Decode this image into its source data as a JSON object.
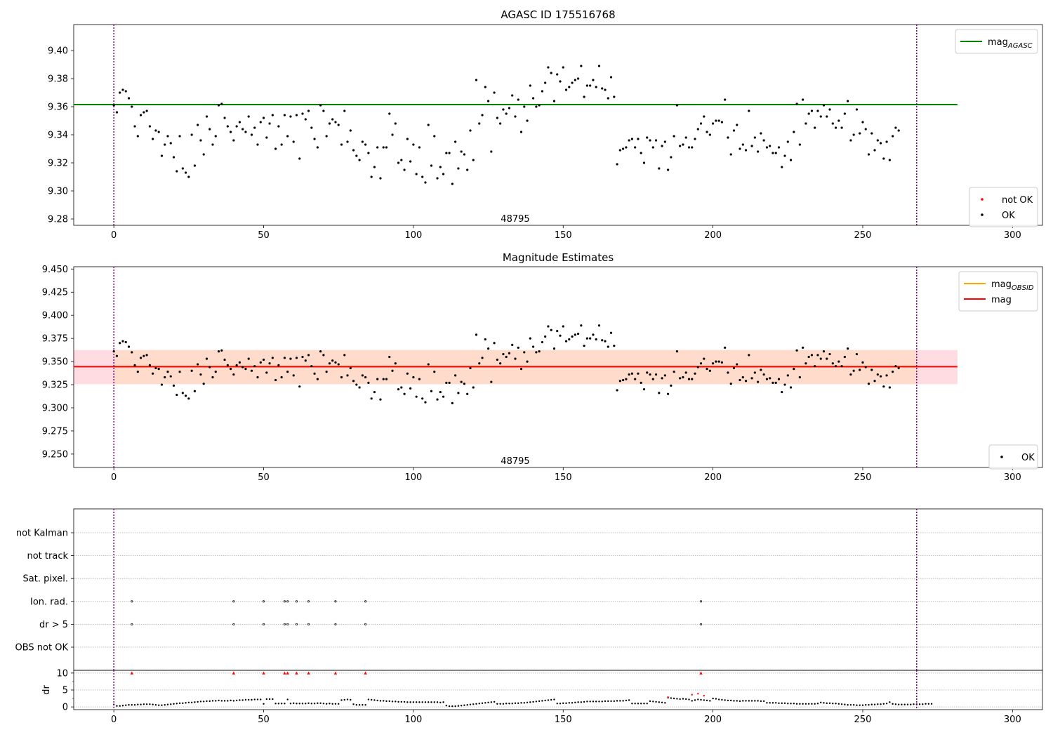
{
  "colors": {
    "agasc_line": "#008000",
    "obsid_line": "#ffa500",
    "mean_line": "#ff0000",
    "band_outer": "#ffc0cb",
    "band_inner": "#ffdab9",
    "points_ok": "#000000",
    "points_not_ok": "#ff0000",
    "vline": "#800080",
    "grid": "#b0b0b0"
  },
  "chart_data": [
    {
      "type": "scatter",
      "title": "AGASC ID 175516768",
      "xlim": [
        -13.4,
        310
      ],
      "ylim": [
        9.2755,
        9.4185
      ],
      "x_ticks": [
        0,
        50,
        100,
        150,
        200,
        250,
        300
      ],
      "y_ticks": [
        9.28,
        9.3,
        9.32,
        9.34,
        9.36,
        9.38,
        9.4
      ],
      "y_tick_labels": [
        "9.28",
        "9.30",
        "9.32",
        "9.34",
        "9.36",
        "9.38",
        "9.40"
      ],
      "grid": false,
      "hline": {
        "name": "mag_AGASC",
        "y": 9.3615,
        "x_range": [
          -13.4,
          281.6
        ]
      },
      "vlines": [
        0,
        268
      ],
      "annotation": {
        "text": "48795",
        "x": 134,
        "y": 9.2775
      },
      "legends": [
        {
          "placement": "upper right",
          "entries": [
            {
              "label": "mag",
              "sub": "AGASC",
              "kind": "line",
              "color_key": "agasc_line"
            }
          ]
        },
        {
          "placement": "lower right",
          "entries": [
            {
              "label": "not OK",
              "kind": "dot",
              "color_key": "points_not_ok"
            },
            {
              "label": "OK",
              "kind": "dot",
              "color_key": "points_ok"
            }
          ]
        }
      ]
    },
    {
      "type": "scatter",
      "title": "Magnitude Estimates",
      "xlim": [
        -13.4,
        310
      ],
      "ylim": [
        9.2355,
        9.4525
      ],
      "x_ticks": [
        0,
        50,
        100,
        150,
        200,
        250,
        300
      ],
      "y_ticks": [
        9.25,
        9.275,
        9.3,
        9.325,
        9.35,
        9.375,
        9.4,
        9.425,
        9.45
      ],
      "y_tick_labels": [
        "9.250",
        "9.275",
        "9.300",
        "9.325",
        "9.350",
        "9.375",
        "9.400",
        "9.425",
        "9.450"
      ],
      "grid": false,
      "bands": [
        {
          "x_range": [
            -13.4,
            281.6
          ],
          "y_range": [
            9.3255,
            9.3625
          ],
          "color_key": "band_outer"
        },
        {
          "x_range": [
            0,
            268
          ],
          "y_range": [
            9.3255,
            9.3625
          ],
          "color_key": "band_inner"
        }
      ],
      "hlines": [
        {
          "name": "mag_OBSID",
          "y": 9.3445,
          "x_range": [
            0,
            268
          ],
          "color_key": "obsid_line"
        },
        {
          "name": "mag",
          "y": 9.3445,
          "x_range": [
            -13.4,
            281.6
          ],
          "color_key": "mean_line"
        }
      ],
      "vlines": [
        0,
        268
      ],
      "annotation": {
        "text": "48795",
        "x": 134,
        "y": 9.2385
      },
      "legends": [
        {
          "placement": "upper right",
          "entries": [
            {
              "label": "mag",
              "sub": "OBSID",
              "kind": "line",
              "color_key": "obsid_line"
            },
            {
              "label": "mag",
              "kind": "line",
              "color_key": "mean_line"
            }
          ]
        },
        {
          "placement": "lower right",
          "entries": [
            {
              "label": "OK",
              "kind": "dot",
              "color_key": "points_ok"
            }
          ]
        }
      ]
    },
    {
      "type": "scatter",
      "title": "",
      "xlim": [
        -13.4,
        310
      ],
      "flag_rows": [
        "not Kalman",
        "not track",
        "Sat. pixel.",
        "Ion. rad.",
        "dr > 5",
        "OBS not OK"
      ],
      "flag_points": {
        "Ion. rad.": [
          6,
          40,
          50,
          57,
          58,
          61,
          65,
          74,
          84,
          196
        ],
        "dr > 5": [
          6,
          40,
          50,
          57,
          58,
          61,
          65,
          74,
          84,
          196
        ]
      },
      "dr_ylim": [
        -0.8,
        10.8
      ],
      "dr_yticks": [
        0,
        5,
        10
      ],
      "dr_ylabel": "dr",
      "x_ticks": [
        0,
        50,
        100,
        150,
        200,
        250,
        300
      ],
      "dr_clipped_x": [
        6,
        40,
        50,
        57,
        58,
        61,
        65,
        74,
        84,
        196
      ],
      "dr_clipped_y": 10,
      "dr_red_points": [
        [
          185,
          2.9
        ],
        [
          193,
          3.6
        ],
        [
          195,
          3.9
        ],
        [
          197,
          3.3
        ]
      ],
      "vlines": [
        0,
        268
      ]
    }
  ],
  "mag_series": {
    "x_step": 1,
    "x_start": 0,
    "values": [
      9.361,
      9.356,
      9.37,
      9.372,
      9.371,
      9.366,
      9.36,
      9.346,
      9.339,
      9.354,
      9.356,
      9.357,
      9.346,
      9.337,
      9.343,
      9.342,
      9.325,
      9.333,
      9.339,
      9.334,
      9.324,
      9.314,
      9.339,
      9.316,
      9.313,
      9.31,
      9.34,
      9.318,
      9.347,
      9.336,
      9.326,
      9.353,
      9.344,
      9.333,
      9.339,
      9.361,
      9.362,
      9.352,
      9.346,
      9.342,
      9.336,
      9.346,
      9.349,
      9.344,
      9.342,
      9.353,
      9.34,
      9.345,
      9.333,
      9.349,
      9.352,
      9.338,
      9.348,
      9.354,
      9.33,
      9.346,
      9.333,
      9.354,
      9.339,
      9.353,
      9.335,
      9.354,
      9.323,
      9.355,
      9.351,
      9.357,
      9.345,
      9.337,
      9.331,
      9.361,
      9.357,
      9.339,
      9.348,
      9.351,
      9.349,
      9.347,
      9.333,
      9.357,
      9.335,
      9.343,
      9.329,
      9.325,
      9.322,
      9.335,
      9.333,
      9.327,
      9.31,
      9.317,
      9.331,
      9.309,
      9.331,
      9.331,
      9.355,
      9.34,
      9.348,
      9.32,
      9.322,
      9.315,
      9.337,
      9.321,
      9.333,
      9.312,
      9.331,
      9.31,
      9.306,
      9.347,
      9.318,
      9.339,
      9.309,
      9.317,
      9.312,
      9.327,
      9.327,
      9.305,
      9.335,
      9.316,
      9.328,
      9.326,
      9.315,
      9.343,
      9.322,
      9.379,
      9.348,
      9.354,
      9.374,
      9.364,
      9.328,
      9.37,
      9.352,
      9.348,
      9.358,
      9.355,
      9.359,
      9.368,
      9.353,
      9.365,
      9.342,
      9.36,
      9.35,
      9.375,
      9.366,
      9.36,
      9.361,
      9.371,
      9.377,
      9.388,
      9.384,
      9.364,
      9.383,
      9.378,
      9.388,
      9.372,
      9.374,
      9.377,
      9.379,
      9.38,
      9.389,
      9.367,
      9.375,
      9.375,
      9.379,
      9.374,
      9.389,
      9.373,
      9.372,
      9.366,
      9.381,
      9.367,
      9.319,
      9.329,
      9.33,
      9.331,
      9.336,
      9.337,
      9.331,
      9.337,
      9.327,
      9.32,
      9.338,
      9.336,
      9.331,
      9.336,
      9.316,
      9.332,
      9.335,
      9.315,
      9.324,
      9.339,
      9.361,
      9.332,
      9.333,
      9.338,
      9.331,
      9.331,
      9.337,
      9.344,
      9.348,
      9.353,
      9.342,
      9.34,
      9.348,
      9.35,
      9.35,
      9.349,
      9.365,
      9.338,
      9.326,
      9.343,
      9.347,
      9.33,
      9.333,
      9.329,
      9.357,
      9.332,
      9.338,
      9.328,
      9.341,
      9.336,
      9.331,
      9.332,
      9.327,
      9.327,
      9.331,
      9.317,
      9.325,
      9.335,
      9.322,
      9.342,
      9.362,
      9.333,
      9.365,
      9.348,
      9.355,
      9.357,
      9.345,
      9.357,
      9.353,
      9.361,
      9.353,
      9.358,
      9.348,
      9.345,
      9.35,
      9.345,
      9.355,
      9.364,
      9.336,
      9.34,
      9.358,
      9.341,
      9.349,
      9.344,
      9.326,
      9.341,
      9.329,
      9.336,
      9.334,
      9.323,
      9.335,
      9.322,
      9.339,
      9.345,
      9.343
    ]
  },
  "dr_series": {
    "values": [
      0.7,
      0.3,
      0.3,
      0.4,
      0.5,
      0.6,
      0.6,
      0.6,
      0.7,
      0.7,
      0.8,
      0.8,
      0.8,
      0.7,
      0.6,
      0.5,
      0.5,
      0.6,
      0.7,
      0.8,
      0.9,
      1.0,
      1.1,
      1.1,
      1.2,
      1.3,
      1.3,
      1.4,
      1.5,
      1.6,
      1.6,
      1.7,
      1.7,
      1.8,
      1.8,
      1.9,
      1.8,
      1.8,
      1.8,
      1.9,
      1.8,
      1.9,
      2.0,
      2.0,
      2.1,
      2.1,
      2.1,
      2.2,
      2.2,
      2.2,
      0.9,
      2.3,
      2.3,
      2.3,
      1.0,
      1.0,
      1.0,
      1.0,
      2.2,
      1.0,
      1.1,
      1.0,
      1.0,
      1.0,
      1.0,
      1.1,
      1.0,
      1.0,
      1.1,
      1.1,
      1.0,
      0.9,
      1.0,
      0.9,
      0.9,
      0.9,
      2.0,
      2.1,
      2.2,
      2.1,
      0.8,
      0.6,
      0.6,
      0.6,
      0.6,
      2.2,
      2.1,
      2.0,
      1.9,
      1.8,
      1.8,
      1.7,
      1.7,
      1.6,
      1.6,
      1.5,
      1.5,
      1.5,
      1.4,
      1.4,
      1.4,
      1.4,
      1.4,
      1.4,
      1.4,
      1.4,
      1.4,
      1.4,
      1.4,
      1.3,
      1.4,
      0.4,
      0.2,
      0.2,
      0.2,
      0.3,
      0.4,
      0.5,
      0.6,
      0.7,
      0.8,
      0.9,
      1.0,
      1.1,
      1.2,
      1.3,
      1.4,
      1.5,
      0.9,
      0.9,
      0.9,
      1.0,
      1.0,
      1.0,
      1.1,
      1.1,
      1.2,
      1.2,
      1.3,
      1.4,
      1.5,
      1.6,
      1.7,
      1.8,
      1.9,
      2.0,
      2.1,
      2.2,
      1.0,
      1.0,
      1.1,
      1.1,
      1.2,
      1.2,
      1.3,
      1.4,
      1.4,
      1.5,
      1.6,
      1.6,
      1.6,
      1.6,
      1.6,
      1.6,
      1.7,
      1.7,
      1.7,
      1.7,
      1.8,
      1.8,
      1.8,
      1.9,
      2.0,
      1.0,
      1.0,
      1.0,
      1.0,
      1.0,
      1.0,
      1.7,
      1.6,
      1.5,
      1.4,
      1.3,
      1.2,
      2.7,
      2.6,
      2.5,
      2.4,
      2.3,
      2.4,
      2.3,
      2.2,
      1.8,
      2.0,
      2.2,
      2.1,
      2.0,
      1.9,
      1.8,
      2.5,
      2.4,
      2.2,
      2.1,
      2.0,
      1.9,
      1.9,
      1.8,
      1.8,
      1.7,
      1.8,
      1.8,
      1.8,
      1.8,
      1.8,
      1.8,
      1.7,
      1.7,
      1.2,
      1.2,
      1.2,
      1.2,
      1.1,
      1.1,
      1.1,
      1.0,
      1.0,
      1.0,
      0.9,
      0.9,
      0.9,
      0.9,
      0.9,
      0.9,
      0.9,
      1.0,
      1.3,
      1.2,
      1.1,
      1.1,
      1.0,
      1.0,
      0.9,
      0.8,
      0.7,
      0.6,
      0.6,
      0.6,
      0.5,
      0.5,
      0.5,
      0.6,
      0.6,
      0.7,
      0.7,
      0.8,
      0.8,
      0.9,
      1.0,
      1.4,
      0.9,
      0.8,
      0.7,
      0.7,
      0.7,
      0.7,
      0.7,
      0.8,
      0.8,
      0.8,
      0.8,
      0.9,
      0.9,
      0.9
    ]
  }
}
